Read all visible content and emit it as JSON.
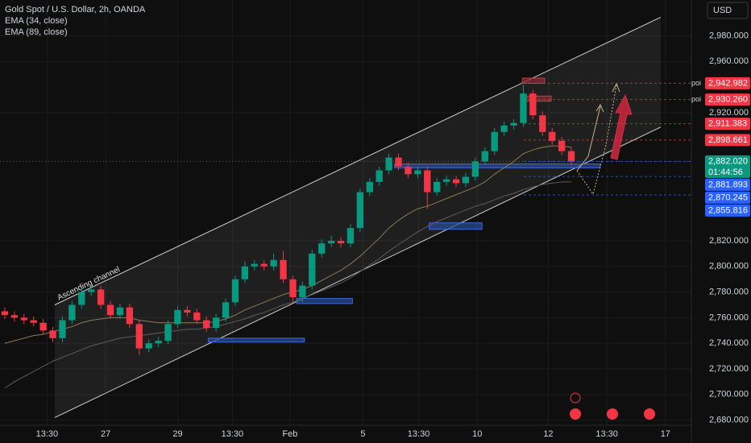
{
  "chart_data": {
    "type": "candlestick",
    "title": "Gold Spot / U.S. Dollar, 2h, OANDA",
    "currency": "USD",
    "xlim": [
      -0.5,
      71.5
    ],
    "ylim": [
      2676,
      3008
    ],
    "grid": true,
    "up_color": "#089981",
    "down_color": "#f23645",
    "xticks": [
      {
        "value": 4.4,
        "label": "13:30"
      },
      {
        "value": 10.5,
        "label": "27"
      },
      {
        "value": 18.0,
        "label": "29"
      },
      {
        "value": 23.7,
        "label": "13:30"
      },
      {
        "value": 29.7,
        "label": "Feb"
      },
      {
        "value": 37.3,
        "label": "5"
      },
      {
        "value": 43.1,
        "label": "13:30"
      },
      {
        "value": 49.2,
        "label": "10"
      },
      {
        "value": 56.6,
        "label": "12"
      },
      {
        "value": 62.7,
        "label": "13:30"
      },
      {
        "value": 68.8,
        "label": "17"
      }
    ],
    "yticks": [
      {
        "value": 2980,
        "label": "2,980.000"
      },
      {
        "value": 2960,
        "label": "2,960.000"
      },
      {
        "value": 2920,
        "label": "2,920.000"
      },
      {
        "value": 2820,
        "label": "2,820.000"
      },
      {
        "value": 2800,
        "label": "2,800.000"
      },
      {
        "value": 2780,
        "label": "2,780.000"
      },
      {
        "value": 2760,
        "label": "2,760.000"
      },
      {
        "value": 2740,
        "label": "2,740.000"
      },
      {
        "value": 2720,
        "label": "2,720.000"
      },
      {
        "value": 2700,
        "label": "2,700.000"
      },
      {
        "value": 2680,
        "label": "2,680.000"
      }
    ],
    "open": [
      2765,
      2762,
      2760,
      2758,
      2756,
      2750,
      2744,
      2758,
      2770,
      2780,
      2782,
      2770,
      2762,
      2768,
      2755,
      2736,
      2740,
      2742,
      2755,
      2766,
      2764,
      2758,
      2752,
      2760,
      2772,
      2790,
      2800,
      2802,
      2800,
      2805,
      2790,
      2776,
      2785,
      2810,
      2818,
      2820,
      2818,
      2830,
      2858,
      2866,
      2875,
      2885,
      2878,
      2872,
      2875,
      2858,
      2866,
      2868,
      2865,
      2870,
      2882,
      2890,
      2905,
      2910,
      2912,
      2935,
      2918,
      2905,
      2898,
      2890
    ],
    "high": [
      2768,
      2765,
      2763,
      2761,
      2759,
      2753,
      2761,
      2773,
      2783,
      2786,
      2785,
      2773,
      2771,
      2771,
      2758,
      2743,
      2745,
      2758,
      2769,
      2769,
      2767,
      2761,
      2763,
      2775,
      2793,
      2804,
      2805,
      2805,
      2810,
      2812,
      2793,
      2788,
      2813,
      2821,
      2824,
      2823,
      2833,
      2861,
      2869,
      2878,
      2888,
      2888,
      2881,
      2878,
      2878,
      2869,
      2871,
      2871,
      2873,
      2885,
      2893,
      2908,
      2913,
      2915,
      2942,
      2938,
      2921,
      2908,
      2901,
      2893
    ],
    "low": [
      2759,
      2757,
      2755,
      2753,
      2747,
      2741,
      2741,
      2755,
      2767,
      2777,
      2767,
      2759,
      2759,
      2752,
      2731,
      2733,
      2737,
      2739,
      2752,
      2761,
      2755,
      2749,
      2749,
      2757,
      2769,
      2787,
      2797,
      2797,
      2797,
      2787,
      2772,
      2772,
      2782,
      2807,
      2815,
      2815,
      2815,
      2827,
      2855,
      2863,
      2872,
      2875,
      2869,
      2869,
      2845,
      2855,
      2863,
      2862,
      2862,
      2867,
      2879,
      2887,
      2902,
      2907,
      2909,
      2915,
      2902,
      2895,
      2887,
      2879
    ],
    "close": [
      2762,
      2760,
      2758,
      2756,
      2750,
      2744,
      2758,
      2770,
      2780,
      2782,
      2770,
      2762,
      2768,
      2755,
      2736,
      2740,
      2742,
      2755,
      2766,
      2764,
      2758,
      2752,
      2760,
      2772,
      2790,
      2800,
      2802,
      2800,
      2805,
      2790,
      2776,
      2785,
      2810,
      2818,
      2820,
      2818,
      2830,
      2858,
      2866,
      2875,
      2885,
      2878,
      2872,
      2875,
      2858,
      2866,
      2868,
      2865,
      2870,
      2882,
      2890,
      2905,
      2910,
      2912,
      2935,
      2918,
      2905,
      2898,
      2890,
      2882
    ],
    "series": [
      {
        "name": "EMA (34, close)",
        "color": "#8c7a55",
        "values": [
          2740,
          2742,
          2744,
          2746,
          2747,
          2749,
          2751,
          2753,
          2756,
          2758,
          2759,
          2760,
          2760,
          2760,
          2758,
          2757,
          2756,
          2756,
          2756,
          2756,
          2756,
          2756,
          2757,
          2759,
          2762,
          2766,
          2769,
          2772,
          2775,
          2778,
          2780,
          2782,
          2785,
          2789,
          2793,
          2797,
          2802,
          2808,
          2815,
          2822,
          2830,
          2836,
          2841,
          2845,
          2847,
          2850,
          2853,
          2856,
          2859,
          2862,
          2866,
          2872,
          2877,
          2882,
          2888,
          2891,
          2893,
          2894,
          2894,
          2893
        ]
      },
      {
        "name": "EMA (89, close)",
        "color": "#5d5d5d",
        "values": [
          2705,
          2710,
          2714,
          2718,
          2722,
          2726,
          2729,
          2732,
          2735,
          2738,
          2740,
          2742,
          2744,
          2745,
          2746,
          2747,
          2748,
          2749,
          2750,
          2751,
          2751,
          2752,
          2753,
          2755,
          2757,
          2759,
          2762,
          2764,
          2767,
          2770,
          2772,
          2775,
          2778,
          2781,
          2784,
          2787,
          2791,
          2796,
          2801,
          2806,
          2812,
          2817,
          2822,
          2827,
          2831,
          2835,
          2838,
          2841,
          2844,
          2847,
          2849,
          2852,
          2855,
          2857,
          2860,
          2862,
          2864,
          2865,
          2866,
          2866
        ]
      }
    ],
    "channel": {
      "label": "Ascending channel",
      "upper": [
        [
          5.2,
          2770
        ],
        [
          68.3,
          2994.5
        ]
      ],
      "lower": [
        [
          5.2,
          2682
        ],
        [
          68.3,
          2908.8
        ]
      ]
    },
    "zones": [
      {
        "x": [
          40.6,
          62.0
        ],
        "price": [
          2880,
          2877
        ],
        "color": "#2a4a9a"
      },
      {
        "x": [
          44.2,
          49.7
        ],
        "price": [
          2834,
          2829
        ],
        "color": "#2a4a9a"
      },
      {
        "x": [
          30.4,
          36.2
        ],
        "price": [
          2775,
          2771
        ],
        "color": "#2a4a9a"
      },
      {
        "x": [
          21.2,
          31.2
        ],
        "price": [
          2744,
          2741
        ],
        "color": "#2a4a9a"
      },
      {
        "x": [
          53.9,
          56.2
        ],
        "price": [
          2947,
          2943
        ],
        "color": "#8a2a35"
      },
      {
        "x": [
          54.2,
          56.9
        ],
        "price": [
          2933,
          2929
        ],
        "color": "#8a2a35"
      }
    ],
    "price_labels": [
      {
        "value": 2942.982,
        "label": "2,942.982",
        "color": "#f23645",
        "tag": "poi"
      },
      {
        "value": 2930.26,
        "label": "2,930.260",
        "color": "#f23645",
        "tag": "poi"
      },
      {
        "value": 2911.383,
        "label": "2,911.383",
        "color": "#f23645"
      },
      {
        "value": 2898.661,
        "label": "2,898.661",
        "color": "#f23645"
      },
      {
        "value": 2882.02,
        "label": "2,882.020",
        "color": "#089981",
        "countdown": "01:44:56"
      },
      {
        "value": 2881.893,
        "label": "2,881.893",
        "color": "#2962ff"
      },
      {
        "value": 2870.245,
        "label": "2,870.245",
        "color": "#2962ff"
      },
      {
        "value": 2855.816,
        "label": "2,855.816",
        "color": "#2962ff"
      }
    ]
  }
}
